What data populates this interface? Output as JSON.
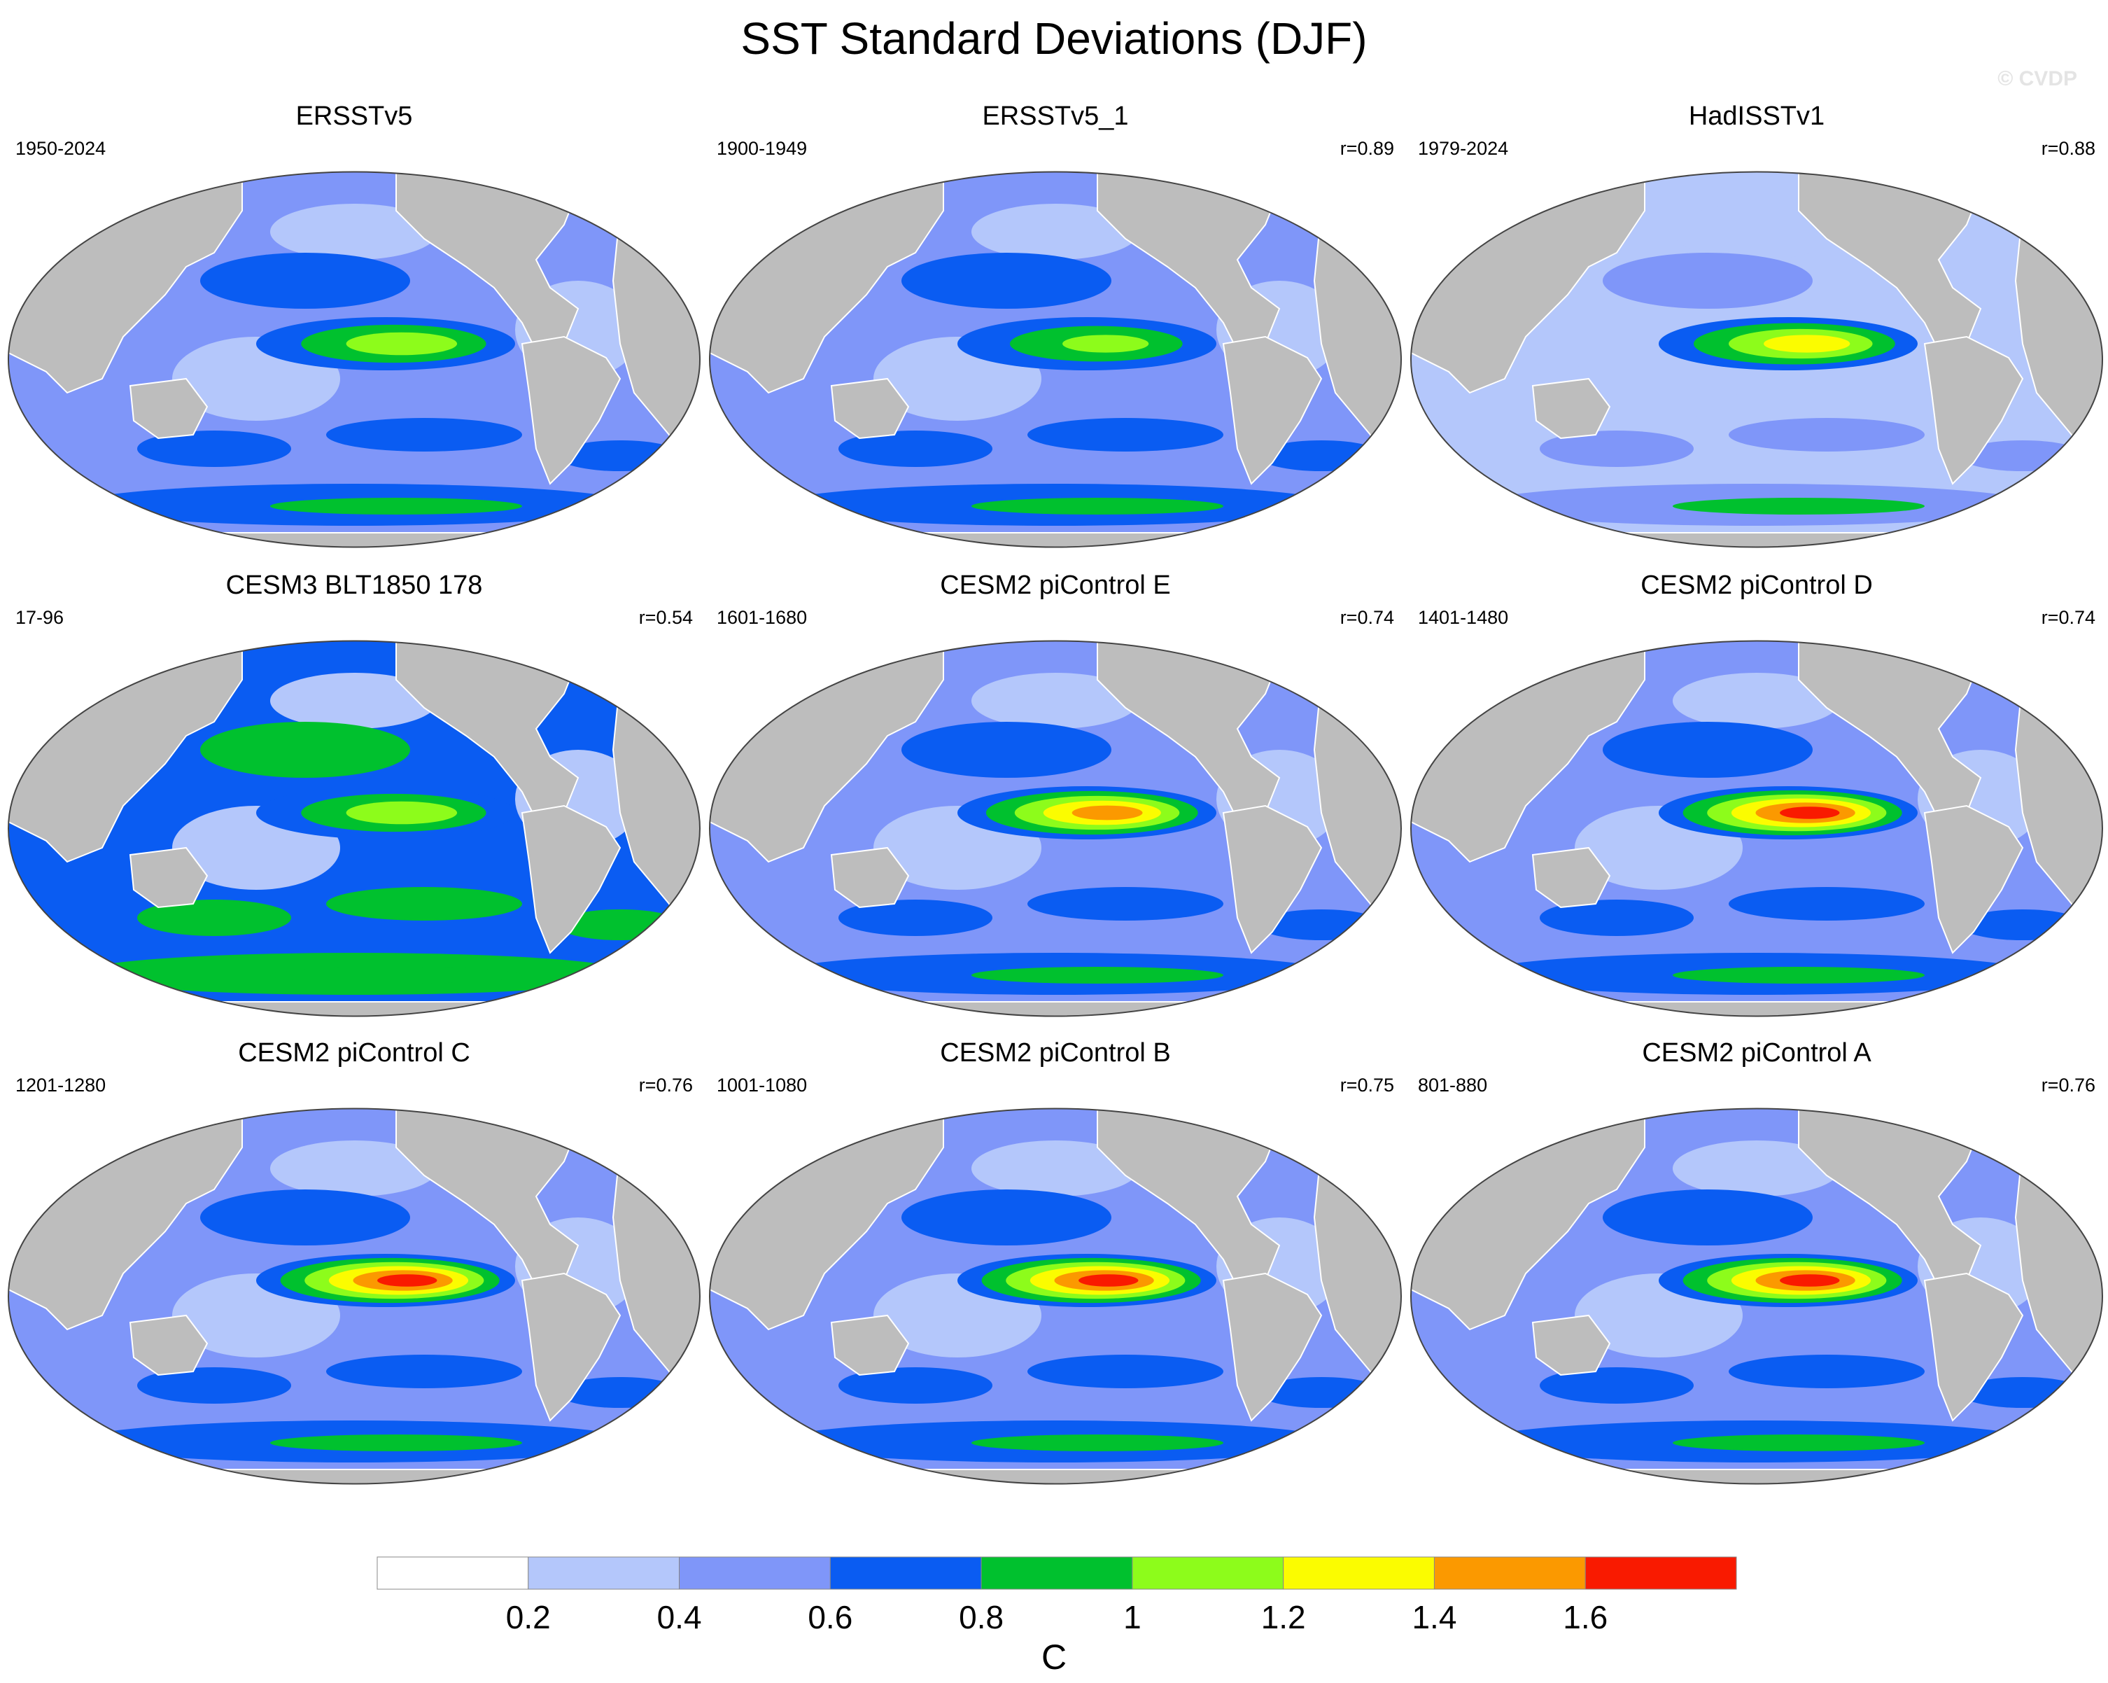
{
  "title": "SST Standard Deviations (DJF)",
  "watermark": "© CVDP",
  "colors": {
    "land": "#bdbdbd",
    "levels": [
      "#ffffff",
      "#b4c7fb",
      "#7f96f9",
      "#0a5cf2",
      "#00c12e",
      "#8dfc1b",
      "#fbfc00",
      "#fb9900",
      "#f91a00"
    ]
  },
  "panels": [
    {
      "name": "ERSSTv5",
      "years": "1950-2024",
      "corr": "",
      "enso_peak": 1.1,
      "background": 0.4
    },
    {
      "name": "ERSSTv5_1",
      "years": "1900-1949",
      "corr": "r=0.89",
      "enso_peak": 1.0,
      "background": 0.4
    },
    {
      "name": "HadISSTv1",
      "years": "1979-2024",
      "corr": "r=0.88",
      "enso_peak": 1.3,
      "background": 0.3
    },
    {
      "name": "CESM3 BLT1850 178",
      "years": "17-96",
      "corr": "r=0.54",
      "enso_peak": 1.1,
      "background": 0.6
    },
    {
      "name": "CESM2 piControl E",
      "years": "1601-1680",
      "corr": "r=0.74",
      "enso_peak": 1.5,
      "background": 0.5
    },
    {
      "name": "CESM2 piControl D",
      "years": "1401-1480",
      "corr": "r=0.74",
      "enso_peak": 1.7,
      "background": 0.5
    },
    {
      "name": "CESM2 piControl C",
      "years": "1201-1280",
      "corr": "r=0.76",
      "enso_peak": 1.7,
      "background": 0.5
    },
    {
      "name": "CESM2 piControl B",
      "years": "1001-1080",
      "corr": "r=0.75",
      "enso_peak": 1.7,
      "background": 0.5
    },
    {
      "name": "CESM2 piControl A",
      "years": "801-880",
      "corr": "r=0.76",
      "enso_peak": 1.7,
      "background": 0.5
    }
  ],
  "chart_data": {
    "type": "heatmap",
    "title": "SST Standard Deviations (DJF)",
    "units": "C",
    "levels": [
      0.2,
      0.4,
      0.6,
      0.8,
      1,
      1.2,
      1.4,
      1.6
    ],
    "tick_labels": [
      "0.2",
      "0.4",
      "0.6",
      "0.8",
      "1",
      "1.2",
      "1.4",
      "1.6"
    ],
    "panel_titles": [
      "ERSSTv5",
      "ERSSTv5_1",
      "HadISSTv1",
      "CESM3 BLT1850 178",
      "CESM2 piControl E",
      "CESM2 piControl D",
      "CESM2 piControl C",
      "CESM2 piControl B",
      "CESM2 piControl A"
    ],
    "pattern_correlations": [
      "",
      "r=0.89",
      "r=0.88",
      "r=0.54",
      "r=0.74",
      "r=0.74",
      "r=0.76",
      "r=0.75",
      "r=0.76"
    ]
  }
}
